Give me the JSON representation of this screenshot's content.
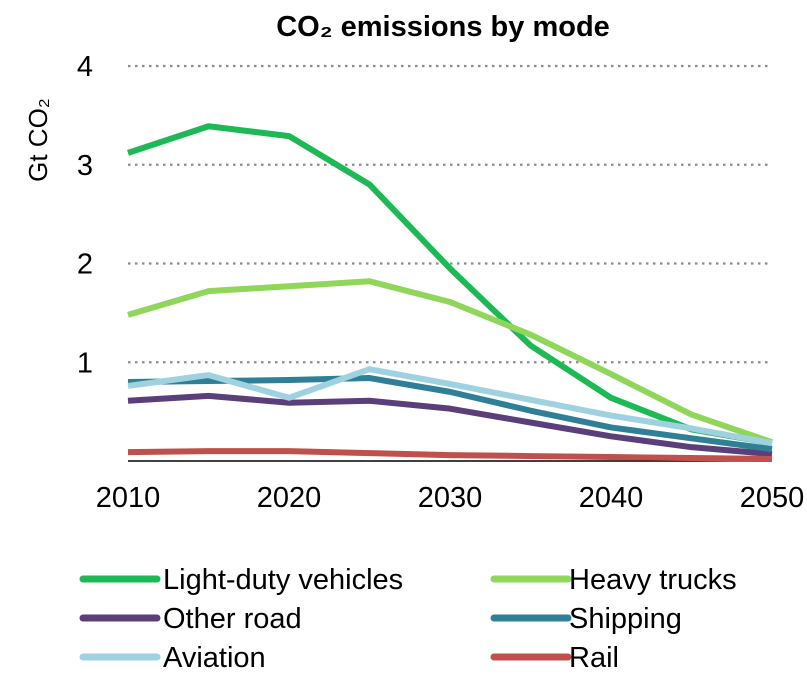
{
  "chart_data": {
    "type": "line",
    "title": "CO₂ emissions by mode",
    "ylabel": "Gt CO₂",
    "xlabel": "",
    "x": [
      2010,
      2015,
      2020,
      2025,
      2030,
      2035,
      2040,
      2045,
      2050
    ],
    "xticks": [
      "2010",
      "2020",
      "2030",
      "2040",
      "2050"
    ],
    "yticks": [
      "1",
      "2",
      "3",
      "4"
    ],
    "xlim": [
      2010,
      2050
    ],
    "ylim": [
      0,
      4
    ],
    "grid": "horizontal dotted",
    "legend_position": "bottom",
    "series": [
      {
        "name": "Light-duty vehicles",
        "color": "#1db954",
        "values": [
          3.12,
          3.39,
          3.29,
          2.8,
          1.95,
          1.17,
          0.64,
          0.32,
          0.18
        ]
      },
      {
        "name": "Heavy trucks",
        "color": "#8fd65b",
        "values": [
          1.48,
          1.72,
          1.77,
          1.82,
          1.61,
          1.28,
          0.88,
          0.47,
          0.19
        ]
      },
      {
        "name": "Other road",
        "color": "#5b3f7a",
        "values": [
          0.61,
          0.66,
          0.59,
          0.61,
          0.53,
          0.39,
          0.25,
          0.14,
          0.07
        ]
      },
      {
        "name": "Shipping",
        "color": "#2f7f96",
        "values": [
          0.8,
          0.81,
          0.82,
          0.84,
          0.7,
          0.51,
          0.34,
          0.23,
          0.12
        ]
      },
      {
        "name": "Aviation",
        "color": "#9fd2e0",
        "values": [
          0.76,
          0.87,
          0.64,
          0.93,
          0.78,
          0.62,
          0.46,
          0.33,
          0.18
        ]
      },
      {
        "name": "Rail",
        "color": "#c0504d",
        "values": [
          0.09,
          0.1,
          0.1,
          0.08,
          0.06,
          0.05,
          0.04,
          0.03,
          0.02
        ]
      }
    ]
  }
}
